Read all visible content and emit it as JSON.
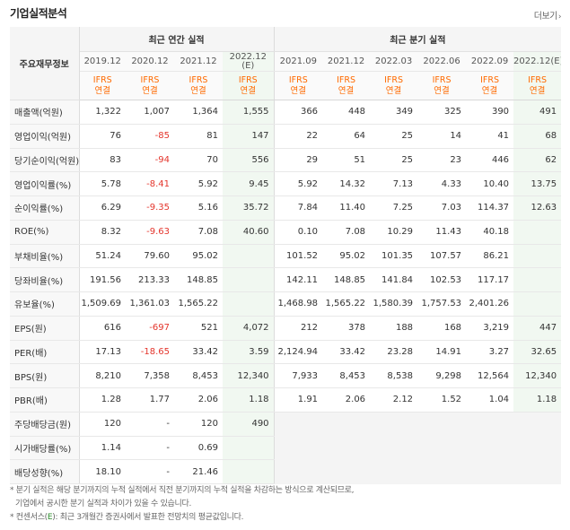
{
  "header": {
    "title": "기업실적분석",
    "more_label": "더보기",
    "more_arrow": "›"
  },
  "table": {
    "label_header": "주요재무정보",
    "annual_header": "최근 연간 실적",
    "quarter_header": "최근 분기 실적",
    "annual_periods": [
      "2019.12",
      "2020.12",
      "2021.12",
      "2022.12"
    ],
    "annual_estimate_tag": "(E)",
    "quarter_periods": [
      "2021.09",
      "2021.12",
      "2022.03",
      "2022.06",
      "2022.09",
      "2022.12"
    ],
    "quarter_estimate_tag": "(E)",
    "basis_top": "IFRS",
    "basis_bottom": "연결",
    "rows": [
      {
        "label": "매출액(억원)",
        "values": [
          "1,322",
          "1,007",
          "1,364",
          "1,555",
          "366",
          "448",
          "349",
          "325",
          "390",
          "491"
        ]
      },
      {
        "label": "영업이익(억원)",
        "values": [
          "76",
          "-85",
          "81",
          "147",
          "22",
          "64",
          "25",
          "14",
          "41",
          "68"
        ]
      },
      {
        "label": "당기순이익(억원)",
        "values": [
          "83",
          "-94",
          "70",
          "556",
          "29",
          "51",
          "25",
          "23",
          "446",
          "62"
        ]
      },
      {
        "label": "영업이익률(%)",
        "values": [
          "5.78",
          "-8.41",
          "5.92",
          "9.45",
          "5.92",
          "14.32",
          "7.13",
          "4.33",
          "10.40",
          "13.75"
        ]
      },
      {
        "label": "순이익률(%)",
        "values": [
          "6.29",
          "-9.35",
          "5.16",
          "35.72",
          "7.84",
          "11.40",
          "7.25",
          "7.03",
          "114.37",
          "12.63"
        ]
      },
      {
        "label": "ROE(%)",
        "values": [
          "8.32",
          "-9.63",
          "7.08",
          "40.60",
          "0.10",
          "7.08",
          "10.29",
          "11.43",
          "40.18",
          ""
        ]
      },
      {
        "label": "부채비율(%)",
        "values": [
          "51.24",
          "79.60",
          "95.02",
          "",
          "101.52",
          "95.02",
          "101.35",
          "107.57",
          "86.21",
          ""
        ]
      },
      {
        "label": "당좌비율(%)",
        "values": [
          "191.56",
          "213.33",
          "148.85",
          "",
          "142.11",
          "148.85",
          "141.84",
          "102.53",
          "117.17",
          ""
        ]
      },
      {
        "label": "유보율(%)",
        "values": [
          "1,509.69",
          "1,361.03",
          "1,565.22",
          "",
          "1,468.98",
          "1,565.22",
          "1,580.39",
          "1,757.53",
          "2,401.26",
          ""
        ]
      },
      {
        "label": "EPS(원)",
        "values": [
          "616",
          "-697",
          "521",
          "4,072",
          "212",
          "378",
          "188",
          "168",
          "3,219",
          "447"
        ]
      },
      {
        "label": "PER(배)",
        "values": [
          "17.13",
          "-18.65",
          "33.42",
          "3.59",
          "2,124.94",
          "33.42",
          "23.28",
          "14.91",
          "3.27",
          "32.65"
        ]
      },
      {
        "label": "BPS(원)",
        "values": [
          "8,210",
          "7,358",
          "8,453",
          "12,340",
          "7,933",
          "8,453",
          "8,538",
          "9,298",
          "12,564",
          "12,340"
        ]
      },
      {
        "label": "PBR(배)",
        "values": [
          "1.28",
          "1.77",
          "2.06",
          "1.18",
          "1.91",
          "2.06",
          "2.12",
          "1.52",
          "1.04",
          "1.18"
        ]
      },
      {
        "label": "주당배당금(원)",
        "values": [
          "120",
          "-",
          "120",
          "490"
        ]
      },
      {
        "label": "시가배당률(%)",
        "values": [
          "1.14",
          "-",
          "0.69",
          ""
        ]
      },
      {
        "label": "배당성향(%)",
        "values": [
          "18.10",
          "-",
          "21.46",
          ""
        ]
      }
    ]
  },
  "notes": {
    "line1": "* 분기 실적은 해당 분기까지의 누적 실적에서 직전 분기까지의 누적 실적을 차감하는 방식으로 계산되므로,",
    "line2": "기업에서 공시한 분기 실적과 차이가 있을 수 있습니다.",
    "line3_prefix": "* 컨센서스(",
    "line3_e": "E",
    "line3_suffix": "): 최근 3개월간 증권사에서 발표한 전망치의 평균값입니다."
  },
  "colors": {
    "negative": "#e4352c",
    "ifrs": "#ff6a00",
    "estimate_bg": "#f1f8f1"
  }
}
